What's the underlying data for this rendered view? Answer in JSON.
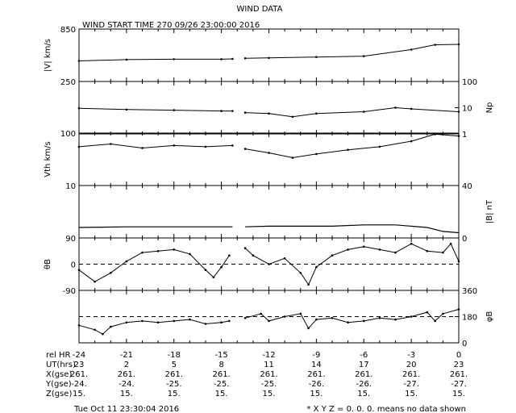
{
  "title": "WIND DATA",
  "start_time": "WIND START TIME 270 09/26 23:00:00 2016",
  "timestamp": "Tue Oct 11 23:30:04 2016",
  "footnote": "* X Y Z = 0. 0. 0. means no data shown",
  "table": {
    "row_labels": [
      "rel HR",
      "UT(hrs)",
      "X(gse)",
      "Y(gse)",
      "Z(gse)"
    ],
    "rel_hr": [
      "-24",
      "-21",
      "-18",
      "-15",
      "-12",
      "-9",
      "-6",
      "-3",
      "0"
    ],
    "ut_hrs": [
      "23",
      "2",
      "5",
      "8",
      "11",
      "14",
      "17",
      "20",
      "23"
    ],
    "x_gse": [
      "261.",
      "261.",
      "261.",
      "261.",
      "261.",
      "261.",
      "261.",
      "261.",
      "261."
    ],
    "y_gse": [
      "-24.",
      "-24.",
      "-25.",
      "-25.",
      "-25.",
      "-26.",
      "-26.",
      "-27.",
      "-27."
    ],
    "z_gse": [
      "15.",
      "15.",
      "15.",
      "15.",
      "15.",
      "15.",
      "15.",
      "15.",
      "15."
    ]
  },
  "chart_data": [
    {
      "type": "scatter",
      "panel": "speed",
      "ylabel": "|V| km/s",
      "ylim": [
        250,
        850
      ],
      "ticks": [
        "850",
        "250"
      ],
      "series": [
        {
          "x": [
            -24,
            -21,
            -18,
            -15,
            -14.3
          ],
          "y": [
            485,
            500,
            505,
            505,
            508
          ]
        },
        {
          "x": [
            -13.5,
            -12,
            -9,
            -6,
            -3,
            -1.5,
            0
          ],
          "y": [
            515,
            520,
            530,
            540,
            615,
            670,
            675
          ]
        }
      ]
    },
    {
      "type": "scatter",
      "panel": "density",
      "ylabel": "Np",
      "scale": "log",
      "ylim": [
        1,
        100
      ],
      "ticks": [
        "100",
        "10",
        "1"
      ],
      "series": [
        {
          "x": [
            -24,
            -21,
            -18,
            -15,
            -14.3
          ],
          "y": [
            9.5,
            8.5,
            8,
            7.5,
            7.5
          ]
        },
        {
          "x": [
            -13.5,
            -12,
            -10.5,
            -9,
            -6,
            -4,
            -3,
            0
          ],
          "y": [
            6.5,
            6,
            4.5,
            6,
            7,
            10,
            9,
            7
          ]
        }
      ]
    },
    {
      "type": "scatter",
      "panel": "thermal_speed",
      "ylabel": "Vth km/s",
      "scale": "log",
      "ylim": [
        10,
        100
      ],
      "ticks": [
        "100",
        "10"
      ],
      "series": [
        {
          "x": [
            -24,
            -22,
            -20,
            -18,
            -16,
            -14.3
          ],
          "y": [
            55,
            62,
            52,
            58,
            55,
            58
          ]
        },
        {
          "x": [
            -13.5,
            -12,
            -10.5,
            -9,
            -7,
            -5,
            -3,
            -1.5,
            0
          ],
          "y": [
            50,
            42,
            34,
            40,
            48,
            55,
            70,
            95,
            88
          ]
        }
      ]
    },
    {
      "type": "line",
      "panel": "field_magnitude",
      "ylabel": "|B| nT",
      "ylim": [
        0,
        40
      ],
      "ticks": [
        "40",
        "0"
      ],
      "series": [
        {
          "x": [
            -24,
            -21,
            -18,
            -15,
            -14.3
          ],
          "y": [
            8,
            8.5,
            8.5,
            8.5,
            8.5
          ]
        },
        {
          "x": [
            -13.5,
            -12,
            -10,
            -8,
            -6,
            -4,
            -2,
            -1,
            0
          ],
          "y": [
            8.5,
            9,
            9,
            9,
            10,
            10,
            8,
            5,
            4
          ]
        }
      ]
    },
    {
      "type": "scatter",
      "panel": "theta_b",
      "ylabel": "θB",
      "ylim": [
        -90,
        90
      ],
      "ticks": [
        "90",
        "0",
        "-90"
      ],
      "reference_line": 0,
      "series": [
        {
          "x": [
            -24,
            -23,
            -22,
            -21,
            -20,
            -19,
            -18,
            -17,
            -16,
            -15.5,
            -15,
            -14.5
          ],
          "y": [
            -20,
            -60,
            -30,
            10,
            40,
            45,
            50,
            35,
            -20,
            -45,
            -10,
            30
          ]
        },
        {
          "x": [
            -13.5,
            -13,
            -12,
            -11,
            -10,
            -9.5,
            -9,
            -8,
            -7,
            -6,
            -5,
            -4,
            -3,
            -2,
            -1,
            -0.5,
            0
          ],
          "y": [
            55,
            30,
            0,
            20,
            -30,
            -70,
            -10,
            30,
            50,
            60,
            50,
            40,
            70,
            45,
            40,
            70,
            10
          ]
        }
      ]
    },
    {
      "type": "scatter",
      "panel": "phi_b",
      "ylabel": "φB",
      "ylim": [
        0,
        360
      ],
      "ticks": [
        "360",
        "180",
        "0"
      ],
      "reference_line": 180,
      "series": [
        {
          "x": [
            -24,
            -23,
            -22.5,
            -22,
            -21,
            -20,
            -19,
            -18,
            -17,
            -16,
            -15,
            -14.5
          ],
          "y": [
            120,
            90,
            60,
            110,
            140,
            150,
            140,
            150,
            160,
            130,
            140,
            150
          ]
        },
        {
          "x": [
            -13.5,
            -12.5,
            -12,
            -11,
            -10,
            -9.5,
            -9,
            -8,
            -7,
            -6,
            -5,
            -4,
            -3,
            -2,
            -1.5,
            -1,
            0
          ],
          "y": [
            170,
            200,
            150,
            180,
            200,
            100,
            160,
            170,
            140,
            150,
            170,
            160,
            180,
            210,
            150,
            200,
            230
          ]
        }
      ]
    }
  ]
}
